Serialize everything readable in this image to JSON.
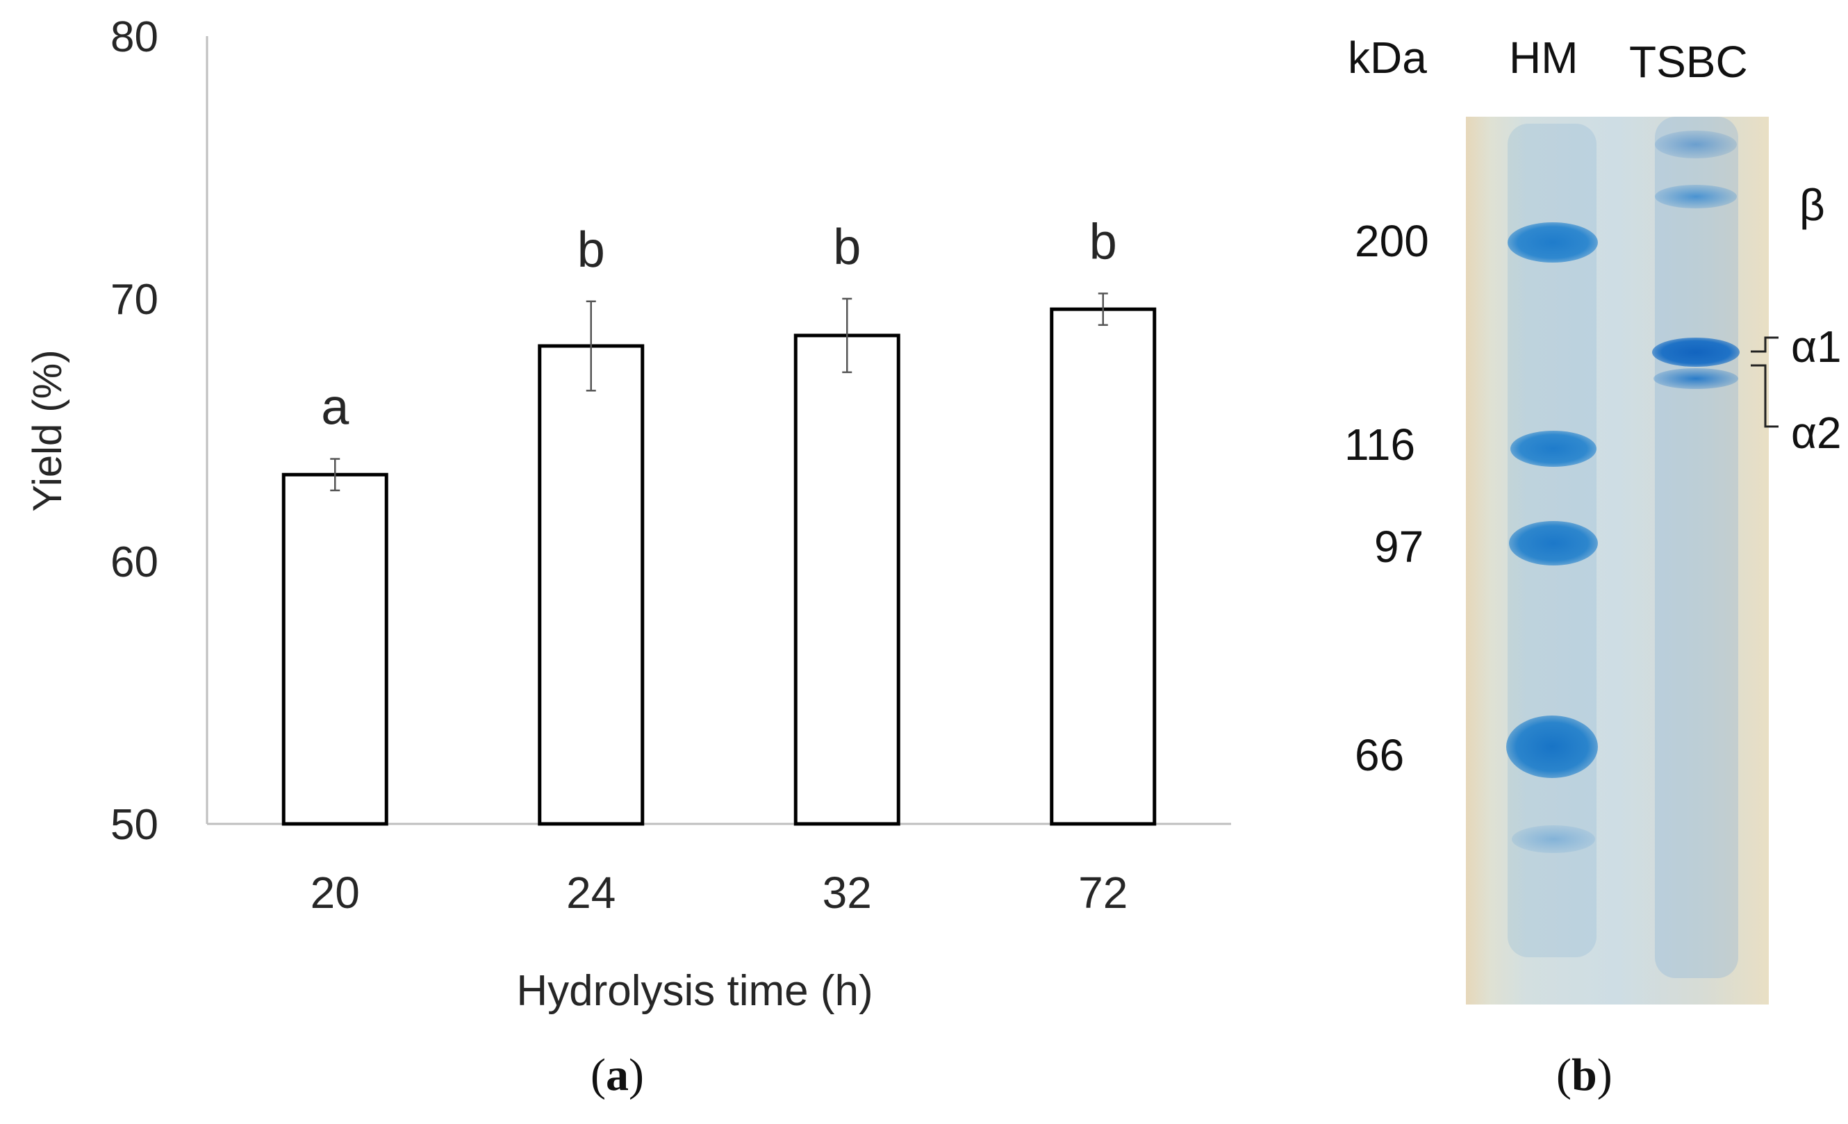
{
  "chart_data": {
    "type": "bar",
    "categories": [
      "20",
      "24",
      "32",
      "72"
    ],
    "values": [
      63.3,
      68.2,
      68.6,
      69.6
    ],
    "errors": [
      0.6,
      1.7,
      1.4,
      0.6
    ],
    "significance_letters": [
      "a",
      "b",
      "b",
      "b"
    ],
    "xlabel": "Hydrolysis time (h)",
    "ylabel": "Yield (%)",
    "ylim": [
      50,
      80
    ],
    "yticks": [
      50,
      60,
      70,
      80
    ],
    "grid": false,
    "bar_fill": "#ffffff",
    "bar_edge": "#000000"
  },
  "captions": {
    "panel_a_letter": "a",
    "panel_b_letter": "b",
    "open": "(",
    "close": ")"
  },
  "gel": {
    "unit_label": "kDa",
    "lanes": [
      "HM",
      "TSBC"
    ],
    "marker_sizes": [
      "200",
      "116",
      "97",
      "66"
    ],
    "chain_labels": [
      "β",
      "α1",
      "α2"
    ],
    "band_color": "#1b6fc1",
    "background_color": "#d4e0e2"
  }
}
